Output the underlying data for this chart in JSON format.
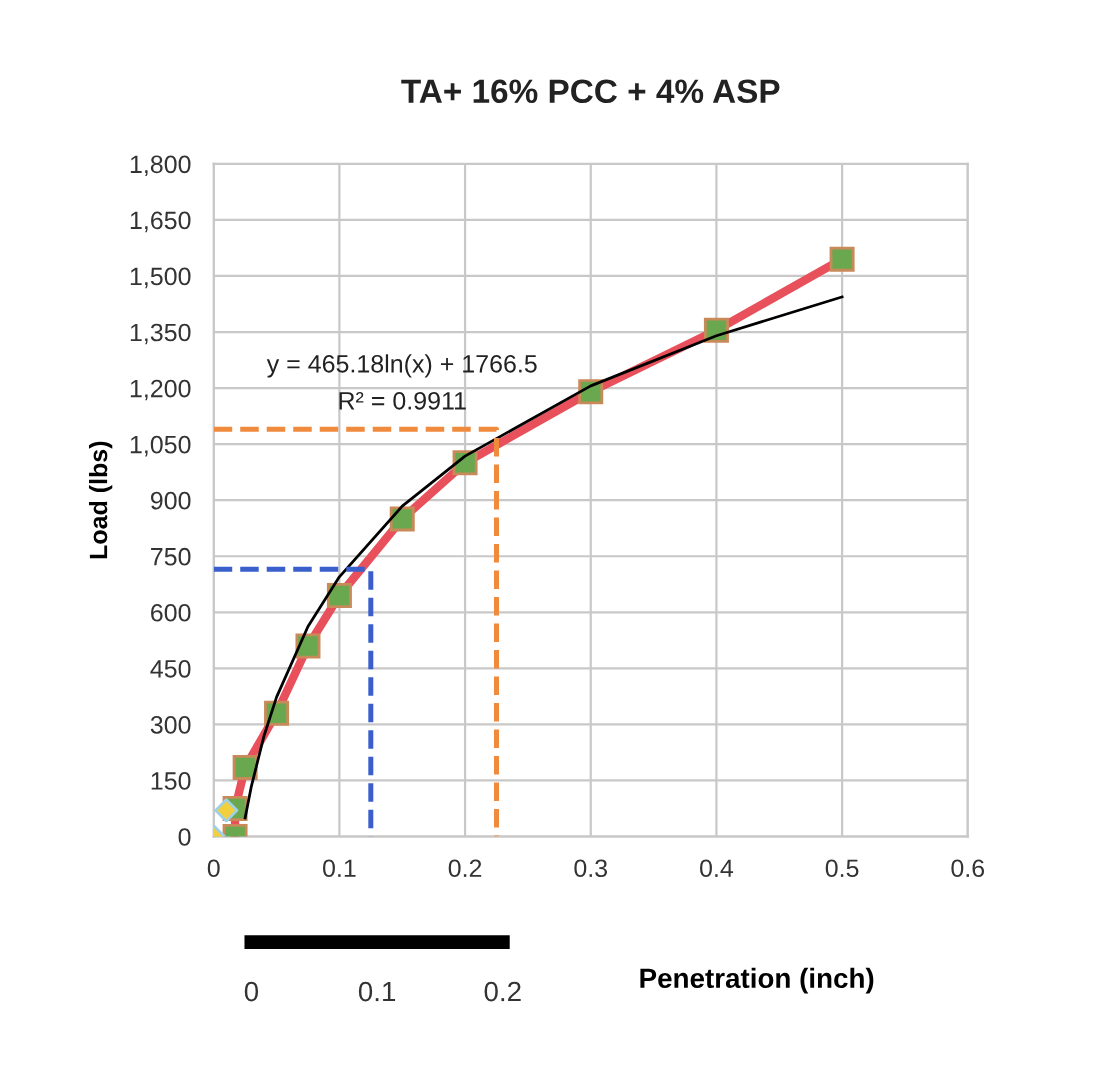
{
  "chart_data": {
    "type": "line",
    "title": "TA+ 16% PCC + 4% ASP",
    "xlabel": "Penetration (inch)",
    "ylabel": "Load (lbs)",
    "annotations": [
      "y = 465.18ln(x) + 1766.5",
      "R² = 0.9911"
    ],
    "xlim": [
      0,
      0.6
    ],
    "xticks": [
      0,
      0.1,
      0.2,
      0.3,
      0.4,
      0.5,
      0.6
    ],
    "ylim": [
      0,
      1800
    ],
    "yticks": [
      0,
      150,
      300,
      450,
      600,
      750,
      900,
      {
        "value": 1050,
        "label": "1,050"
      },
      {
        "value": 1200,
        "label": "1,200"
      },
      {
        "value": 1350,
        "label": "1,350"
      },
      {
        "value": 1500,
        "label": "1,500"
      },
      {
        "value": 1650,
        "label": "1,650"
      },
      {
        "value": 1800,
        "label": "1,800"
      }
    ],
    "x2lim": [
      -0.03,
      0.57
    ],
    "x2ticks": [
      0,
      0.1,
      0.2
    ],
    "grid": true,
    "legend": false,
    "series": [
      {
        "color": "#e8505b",
        "marker": "square",
        "x": [
          0.017,
          0.017,
          0.025,
          0.05,
          0.075,
          0.1,
          0.15,
          0.2,
          0.3,
          0.4,
          0.5
        ],
        "values": [
          0,
          75,
          185,
          330,
          510,
          645,
          850,
          1000,
          1190,
          1355,
          1545
        ]
      },
      {
        "type": "scatter",
        "color": "#f2cf3c",
        "marker": "diamond",
        "x": [
          0,
          0.01
        ],
        "values": [
          0,
          70
        ]
      },
      {
        "type": "line",
        "color": "#000000",
        "marker": "none",
        "x": [
          0.025,
          0.03,
          0.04,
          0.05,
          0.075,
          0.1,
          0.15,
          0.2,
          0.3,
          0.4,
          0.5
        ],
        "values": [
          50,
          135,
          269,
          373,
          562,
          695,
          884,
          1018,
          1206,
          1340,
          1444
        ]
      },
      {
        "type": "line",
        "color": "#3a5fcd",
        "marker": "none",
        "line_style": "dashed",
        "x": [
          0,
          0.125,
          0.125
        ],
        "values": [
          715,
          715,
          0
        ]
      },
      {
        "type": "line",
        "color": "#f08a3c",
        "marker": "none",
        "line_style": "dashed",
        "x": [
          0,
          0.225,
          0.225
        ],
        "values": [
          1090,
          1090,
          0
        ]
      }
    ]
  }
}
